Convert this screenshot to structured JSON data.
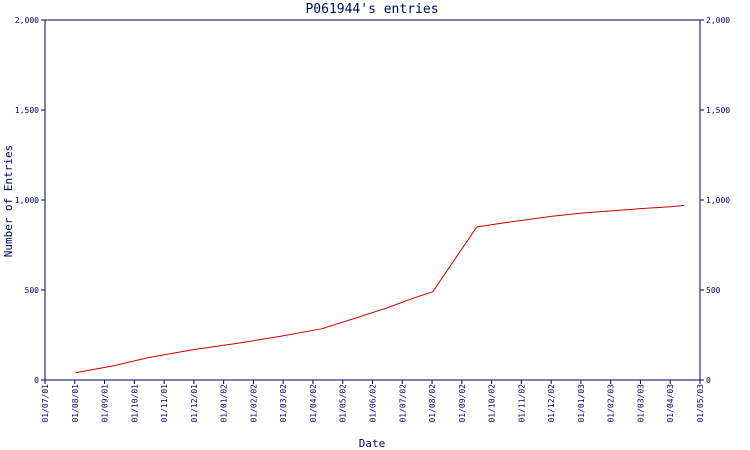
{
  "chart_data": {
    "type": "line",
    "title": "P061944's entries",
    "xlabel": "Date",
    "ylabel": "Number of Entries",
    "ylim": [
      0,
      2000
    ],
    "y_ticks": [
      0,
      500,
      1000,
      1500,
      2000
    ],
    "y_tick_labels": [
      "0",
      "500",
      "1,000",
      "1,500",
      "2,000"
    ],
    "x_tick_labels": [
      "01/07/01",
      "01/08/01",
      "01/09/01",
      "01/10/01",
      "01/11/01",
      "01/12/01",
      "01/01/02",
      "01/02/02",
      "01/03/02",
      "01/04/02",
      "01/05/02",
      "01/06/02",
      "01/07/02",
      "01/08/02",
      "01/09/02",
      "01/10/02",
      "01/11/02",
      "01/12/02",
      "01/01/03",
      "01/02/03",
      "01/03/03",
      "01/04/03",
      "01/05/03"
    ],
    "y_axis_right": true,
    "grid": false,
    "colors": {
      "axis": "#000066",
      "line": "#cc0000",
      "text": "#000066"
    },
    "series": [
      {
        "x": [
          "2001-08-01",
          "2001-09-10",
          "2001-10-15",
          "2001-12-01",
          "2002-01-15",
          "2002-03-01",
          "2002-04-10",
          "2002-05-15",
          "2002-06-15",
          "2002-07-15",
          "2002-08-01",
          "2002-09-15",
          "2002-10-15",
          "2002-12-01",
          "2003-01-01",
          "2003-02-01",
          "2003-03-01",
          "2003-04-01",
          "2003-04-15"
        ],
        "y": [
          40,
          80,
          125,
          170,
          205,
          245,
          285,
          345,
          400,
          460,
          490,
          850,
          875,
          910,
          928,
          940,
          952,
          963,
          970
        ]
      }
    ]
  }
}
